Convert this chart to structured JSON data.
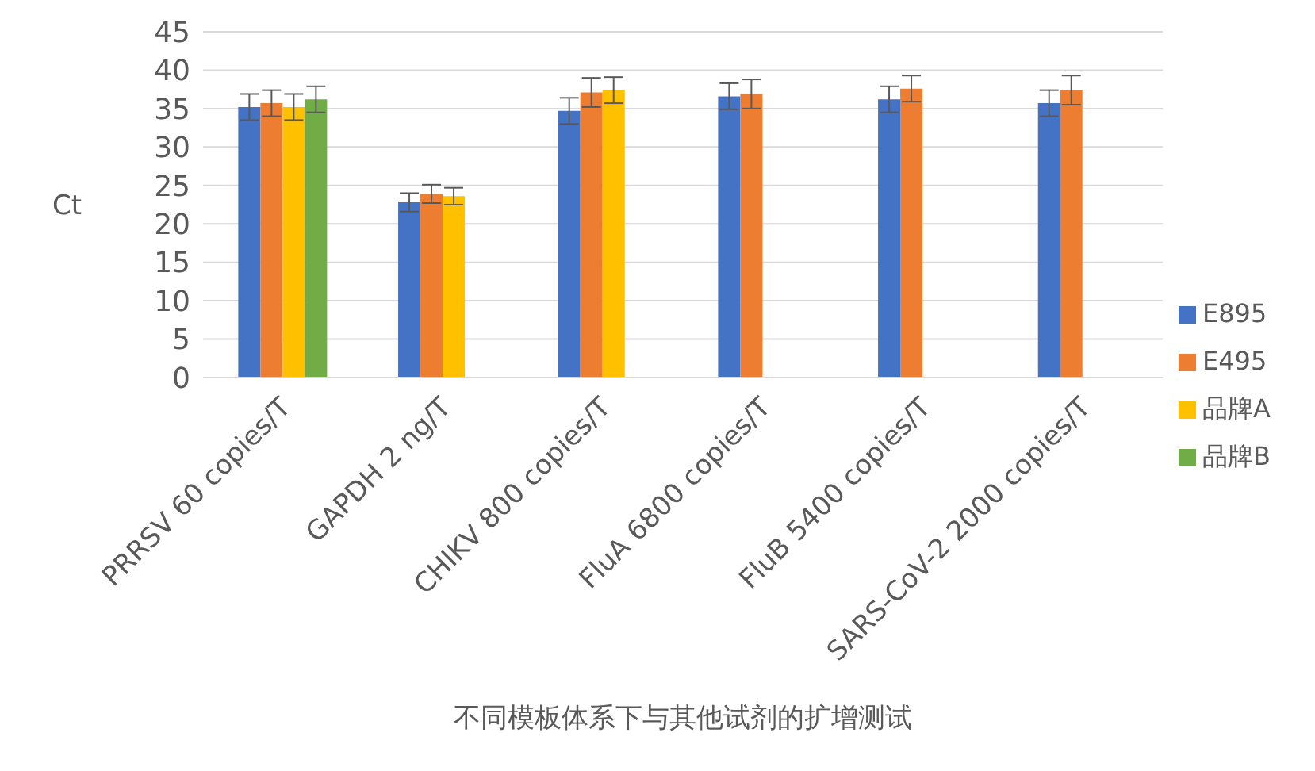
{
  "chart_data": {
    "type": "bar",
    "xlabel": "不同模板体系下与其他试剂的扩增测试",
    "ylabel": "Ct",
    "categories": [
      "PRRSV 60 copies/T",
      "GAPDH 2 ng/T",
      "CHIKV 800 copies/T",
      "FluA 6800 copies/T",
      "FluB 5400 copies/T",
      "SARS-CoV-2 2000 copies/T"
    ],
    "series": [
      {
        "name": "E895",
        "color": "#4472c4",
        "values": [
          35.2,
          22.8,
          34.7,
          36.6,
          36.2,
          35.7
        ],
        "errors": [
          1.7,
          1.2,
          1.7,
          1.7,
          1.7,
          1.7
        ]
      },
      {
        "name": "E495",
        "color": "#ed7d31",
        "values": [
          35.7,
          23.9,
          37.1,
          36.9,
          37.6,
          37.4
        ],
        "errors": [
          1.7,
          1.2,
          1.9,
          1.9,
          1.7,
          1.9
        ]
      },
      {
        "name": "品牌A",
        "color": "#ffc000",
        "values": [
          35.2,
          23.6,
          37.4,
          null,
          null,
          null
        ],
        "errors": [
          1.7,
          1.1,
          1.7,
          null,
          null,
          null
        ]
      },
      {
        "name": "品牌B",
        "color": "#70ad47",
        "values": [
          36.2,
          null,
          null,
          null,
          null,
          null
        ],
        "errors": [
          1.7,
          null,
          null,
          null,
          null,
          null
        ]
      }
    ],
    "ylim": [
      0,
      45
    ],
    "yticks": [
      0,
      5,
      10,
      15,
      20,
      25,
      30,
      35,
      40,
      45
    ],
    "grid": "y",
    "legend": "right"
  }
}
